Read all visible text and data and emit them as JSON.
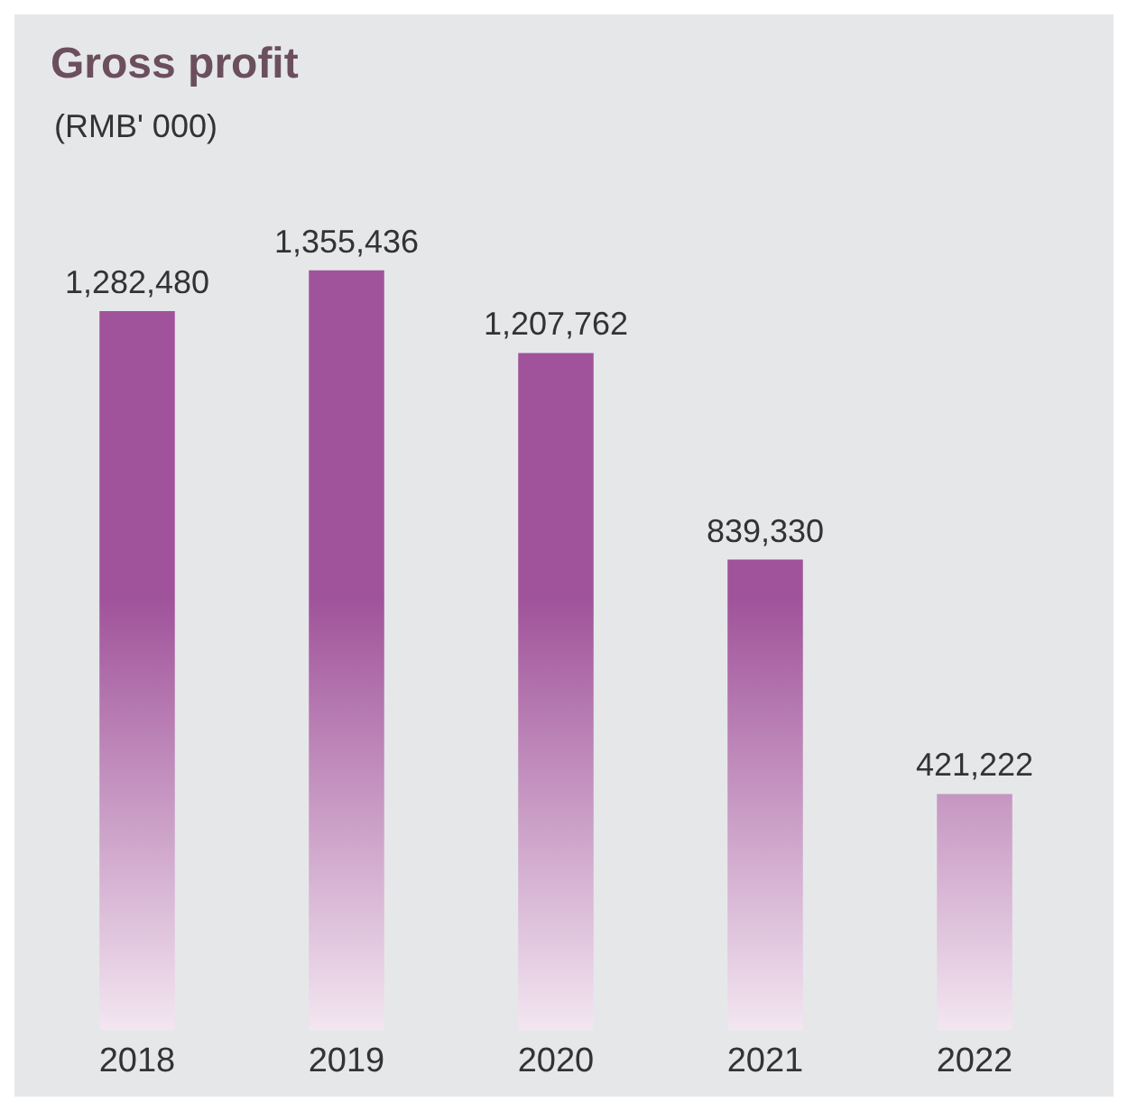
{
  "chart_data": {
    "type": "bar",
    "title": "Gross profit",
    "subtitle": "(RMB' 000)",
    "categories": [
      "2018",
      "2019",
      "2020",
      "2021",
      "2022"
    ],
    "values": [
      1282480,
      1355436,
      1207762,
      839330,
      421222
    ],
    "color": "#a0539a",
    "value_labels": [
      "1,282,480",
      "1,355,436",
      "1,207,762",
      "839,330",
      "421,222"
    ],
    "grid": false,
    "legend": false
  }
}
